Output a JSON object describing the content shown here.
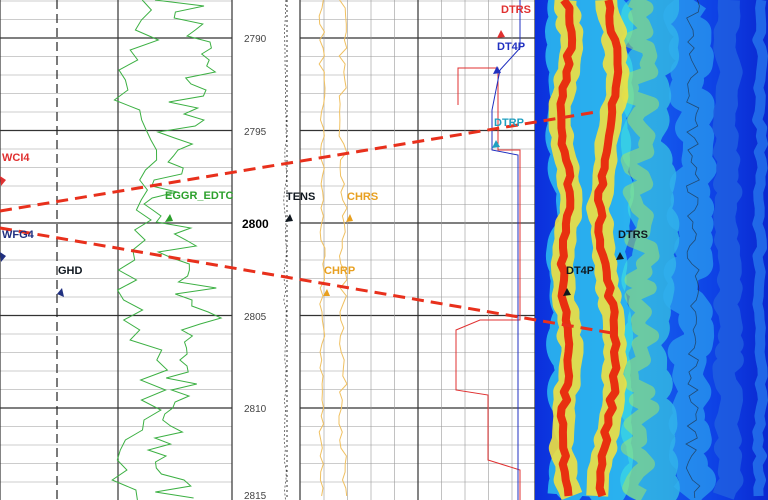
{
  "depth_labels": [
    "2790",
    "2795",
    "2800",
    "2805",
    "2810",
    "2815"
  ],
  "curve_labels": [
    "WCI4",
    "WFG4",
    "GHD",
    "EGGR_EDTC",
    "TENS",
    "CHRS",
    "CHRP",
    "DTRS",
    "DT4P",
    "DTRP",
    "DTRS",
    "DT4P"
  ]
}
